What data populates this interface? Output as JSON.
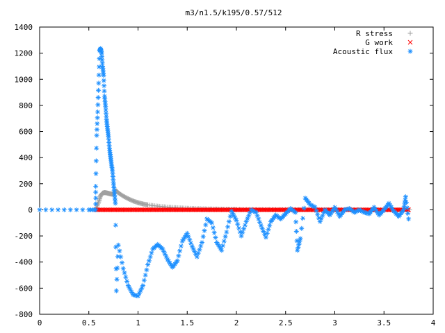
{
  "chart_data": {
    "type": "scatter",
    "title": "m3/n1.5/k195/0.57/512",
    "xlabel": "",
    "ylabel": "",
    "xlim": [
      0,
      4
    ],
    "ylim": [
      -800,
      1400
    ],
    "x_ticks": [
      0,
      0.5,
      1,
      1.5,
      2,
      2.5,
      3,
      3.5,
      4
    ],
    "y_ticks": [
      -800,
      -600,
      -400,
      -200,
      0,
      200,
      400,
      600,
      800,
      1000,
      1200,
      1400
    ],
    "x_tick_labels": [
      "0",
      "0.5",
      "1",
      "1.5",
      "2",
      "2.5",
      "3",
      "3.5",
      "4"
    ],
    "y_tick_labels": [
      "-800",
      "-600",
      "-400",
      "-200",
      "0",
      "200",
      "400",
      "600",
      "800",
      "1000",
      "1200",
      "1400"
    ],
    "grid": false,
    "legend_position": "top-right",
    "series": [
      {
        "name": "R stress",
        "marker": "plus",
        "color": "#a0a0a0",
        "x": [
          0.57,
          0.6,
          0.62,
          0.64,
          0.66,
          0.68,
          0.7,
          0.72,
          0.74,
          0.76,
          0.78,
          0.8,
          0.85,
          0.9,
          0.95,
          1.0,
          1.05,
          1.1,
          1.2,
          1.3,
          1.4,
          1.5,
          1.6,
          1.7,
          1.8,
          1.9,
          2.0,
          2.2,
          2.4,
          2.6,
          2.8,
          3.0,
          3.2,
          3.4,
          3.6,
          3.76
        ],
        "y": [
          0,
          60,
          110,
          128,
          132,
          130,
          126,
          122,
          120,
          135,
          145,
          130,
          105,
          85,
          68,
          55,
          45,
          38,
          28,
          21,
          16,
          12,
          9,
          7,
          6,
          5,
          4,
          3,
          2,
          2,
          1,
          1,
          1,
          0,
          0,
          0
        ]
      },
      {
        "name": "G work",
        "marker": "cross",
        "color": "#ff0000",
        "x_range": [
          0.57,
          3.76
        ],
        "y_value": 0
      },
      {
        "name": "Acoustic flux",
        "marker": "star",
        "color": "#1e90ff",
        "x": [
          0,
          0.25,
          0.5,
          0.57,
          0.57,
          0.58,
          0.59,
          0.6,
          0.61,
          0.62,
          0.63,
          0.64,
          0.65,
          0.66,
          0.67,
          0.68,
          0.69,
          0.7,
          0.71,
          0.72,
          0.73,
          0.74,
          0.75,
          0.76,
          0.77,
          0.78,
          0.8,
          0.85,
          0.9,
          0.95,
          1.0,
          1.05,
          1.1,
          1.15,
          1.2,
          1.25,
          1.3,
          1.35,
          1.4,
          1.45,
          1.5,
          1.55,
          1.6,
          1.65,
          1.7,
          1.75,
          1.8,
          1.85,
          1.9,
          1.95,
          2.0,
          2.05,
          2.1,
          2.15,
          2.2,
          2.25,
          2.3,
          2.35,
          2.4,
          2.45,
          2.5,
          2.55,
          2.6,
          2.62,
          2.65,
          2.7,
          2.75,
          2.8,
          2.85,
          2.9,
          2.95,
          3.0,
          3.05,
          3.1,
          3.15,
          3.2,
          3.25,
          3.3,
          3.35,
          3.4,
          3.45,
          3.5,
          3.55,
          3.6,
          3.65,
          3.7,
          3.72,
          3.75
        ],
        "y": [
          0,
          0,
          0,
          0,
          180,
          570,
          750,
          970,
          1220,
          1235,
          1200,
          1100,
          1030,
          870,
          790,
          690,
          620,
          560,
          470,
          410,
          350,
          300,
          210,
          130,
          50,
          -620,
          -270,
          -450,
          -580,
          -650,
          -660,
          -580,
          -420,
          -300,
          -265,
          -300,
          -380,
          -440,
          -390,
          -240,
          -180,
          -280,
          -360,
          -250,
          -70,
          -100,
          -250,
          -310,
          -170,
          -10,
          -80,
          -200,
          -90,
          0,
          -20,
          -120,
          -210,
          -90,
          -40,
          -70,
          -30,
          10,
          -20,
          -310,
          -220,
          90,
          40,
          20,
          -90,
          0,
          -40,
          20,
          -50,
          0,
          10,
          -20,
          0,
          -20,
          -30,
          20,
          -40,
          0,
          50,
          -10,
          -50,
          0,
          100,
          -70
        ]
      }
    ]
  }
}
